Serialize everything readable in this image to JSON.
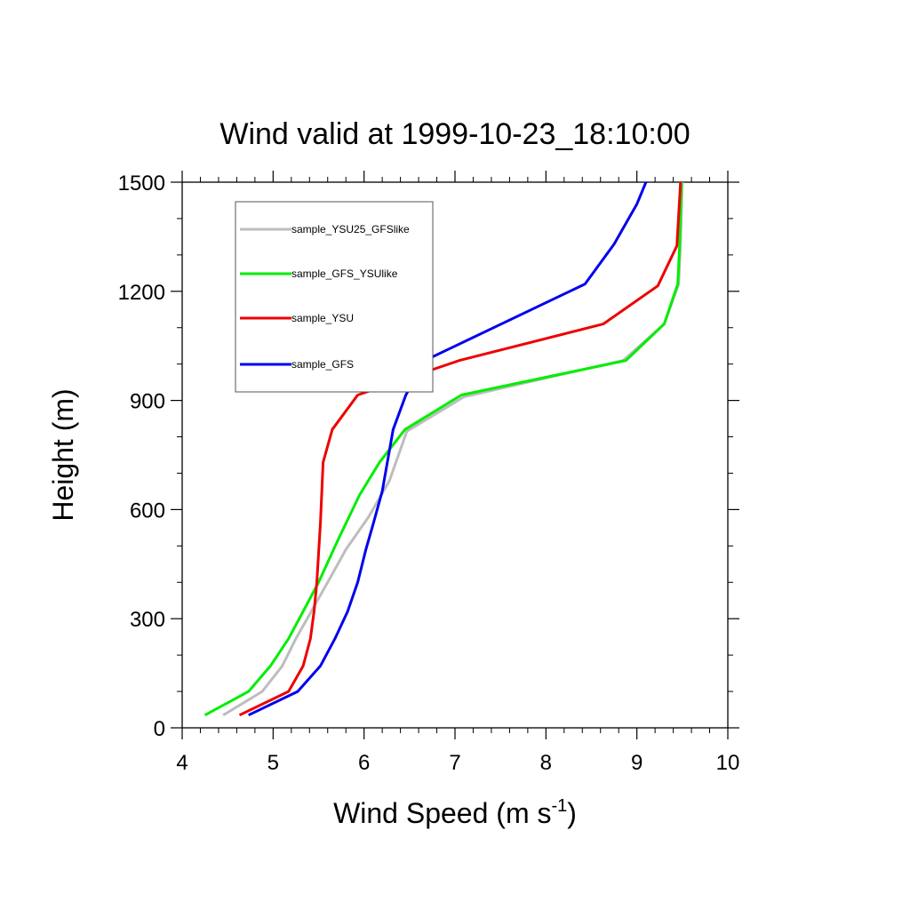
{
  "chart_data": {
    "type": "line",
    "title": "Wind valid at 1999-10-23_18:10:00",
    "xlabel": "Wind Speed (m s",
    "xlabel_superscript": "-1",
    "xlabel_suffix": ")",
    "ylabel": "Height (m)",
    "xlim": [
      4,
      10
    ],
    "ylim": [
      0,
      1500
    ],
    "x_major_ticks": [
      4,
      5,
      6,
      7,
      8,
      9,
      10
    ],
    "y_major_ticks": [
      0,
      300,
      600,
      900,
      1200,
      1500
    ],
    "x_tick_labels": [
      "4",
      "5",
      "6",
      "7",
      "8",
      "9",
      "10"
    ],
    "y_tick_labels": [
      "0",
      "300",
      "600",
      "900",
      "1200",
      "1500"
    ],
    "grid": false,
    "legend_position": "top-left",
    "series": [
      {
        "name": "sample_YSU25_GFSlike",
        "color": "#bdbdbd",
        "x": [
          4.45,
          4.88,
          5.1,
          5.25,
          5.42,
          5.6,
          5.8,
          6.05,
          6.28,
          6.47,
          7.1,
          8.85,
          9.3,
          9.46,
          9.48,
          9.5
        ],
        "y": [
          35,
          100,
          170,
          245,
          320,
          400,
          490,
          580,
          680,
          815,
          910,
          1010,
          1110,
          1220,
          1330,
          1500
        ]
      },
      {
        "name": "sample_GFS_YSUlike",
        "color": "#00ee00",
        "x": [
          4.25,
          4.73,
          4.97,
          5.17,
          5.33,
          5.5,
          5.72,
          5.95,
          6.17,
          6.45,
          7.07,
          8.88,
          9.3,
          9.45,
          9.47,
          9.49
        ],
        "y": [
          35,
          100,
          170,
          245,
          320,
          400,
          520,
          640,
          730,
          820,
          915,
          1010,
          1110,
          1220,
          1330,
          1500
        ]
      },
      {
        "name": "sample_YSU",
        "color": "#ee0000",
        "x": [
          4.63,
          5.17,
          5.33,
          5.41,
          5.45,
          5.48,
          5.5,
          5.52,
          5.55,
          5.65,
          5.93,
          7.05,
          8.63,
          9.23,
          9.44,
          9.48
        ],
        "y": [
          35,
          100,
          170,
          245,
          320,
          400,
          480,
          560,
          730,
          820,
          915,
          1010,
          1110,
          1215,
          1325,
          1500
        ]
      },
      {
        "name": "sample_GFS",
        "color": "#0000ee",
        "x": [
          4.73,
          5.27,
          5.52,
          5.68,
          5.82,
          5.93,
          6.02,
          6.1,
          6.2,
          6.32,
          6.46,
          6.67,
          8.43,
          8.75,
          9.0,
          9.1
        ],
        "y": [
          35,
          100,
          170,
          245,
          320,
          400,
          490,
          560,
          650,
          820,
          915,
          1010,
          1220,
          1330,
          1440,
          1500
        ]
      }
    ]
  }
}
